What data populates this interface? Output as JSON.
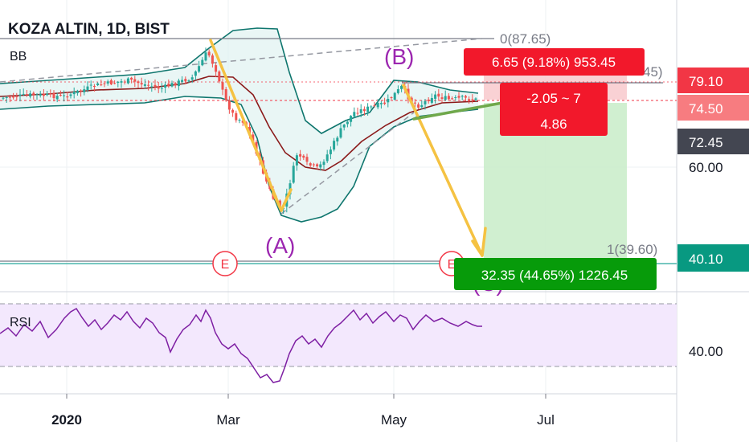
{
  "header": {
    "symbol": "KOZA ALTIN, 1D, BIST",
    "bb_label": "BB",
    "rsi_label": "RSI"
  },
  "chart_data": {
    "type": "candlestick",
    "symbol": "KOZA ALTIN",
    "timeframe": "1D",
    "exchange": "BIST",
    "x_tick_labels": [
      "2020",
      "Mar",
      "May",
      "Jul"
    ],
    "y_tick_labels": [
      "60.00"
    ],
    "rsi_tick_labels": [
      "40.00"
    ],
    "price_badges": [
      {
        "label": "79.10",
        "color": "#f23645"
      },
      {
        "label": "74.50",
        "color": "#f77c80"
      },
      {
        "label": "72.45",
        "color": "#434651"
      },
      {
        "label": "40.10",
        "color": "#089981"
      }
    ],
    "wave_labels": [
      "(A)",
      "(B)",
      "(C)"
    ],
    "event_markers": [
      "E",
      "E"
    ],
    "fib_labels": [
      "0(87.65)",
      "1(39.60)",
      "45)"
    ],
    "stop_box": "6.65 (9.18%) 953.45",
    "mid_box": [
      "-2.05 ~ 7",
      "4.86"
    ],
    "target_box": "32.35 (44.65%) 1226.45",
    "candles_sample": [
      {
        "d": "Jan",
        "o": 72,
        "h": 76,
        "l": 70,
        "c": 74
      },
      {
        "d": "Feb-end",
        "o": 78,
        "h": 86,
        "l": 75,
        "c": 80
      },
      {
        "d": "Mar-mid",
        "o": 52,
        "h": 56,
        "l": 46,
        "c": 49
      },
      {
        "d": "May",
        "o": 75,
        "h": 80,
        "l": 73,
        "c": 77
      },
      {
        "d": "Jun",
        "o": 74,
        "h": 76,
        "l": 73,
        "c": 74.5
      }
    ],
    "colors": {
      "up": "#26a69a",
      "down": "#ef5350",
      "bb": "#0f766e",
      "basis": "#8b1a1a",
      "wave_arrow": "#f5c242",
      "label": "#9c27b0"
    }
  }
}
